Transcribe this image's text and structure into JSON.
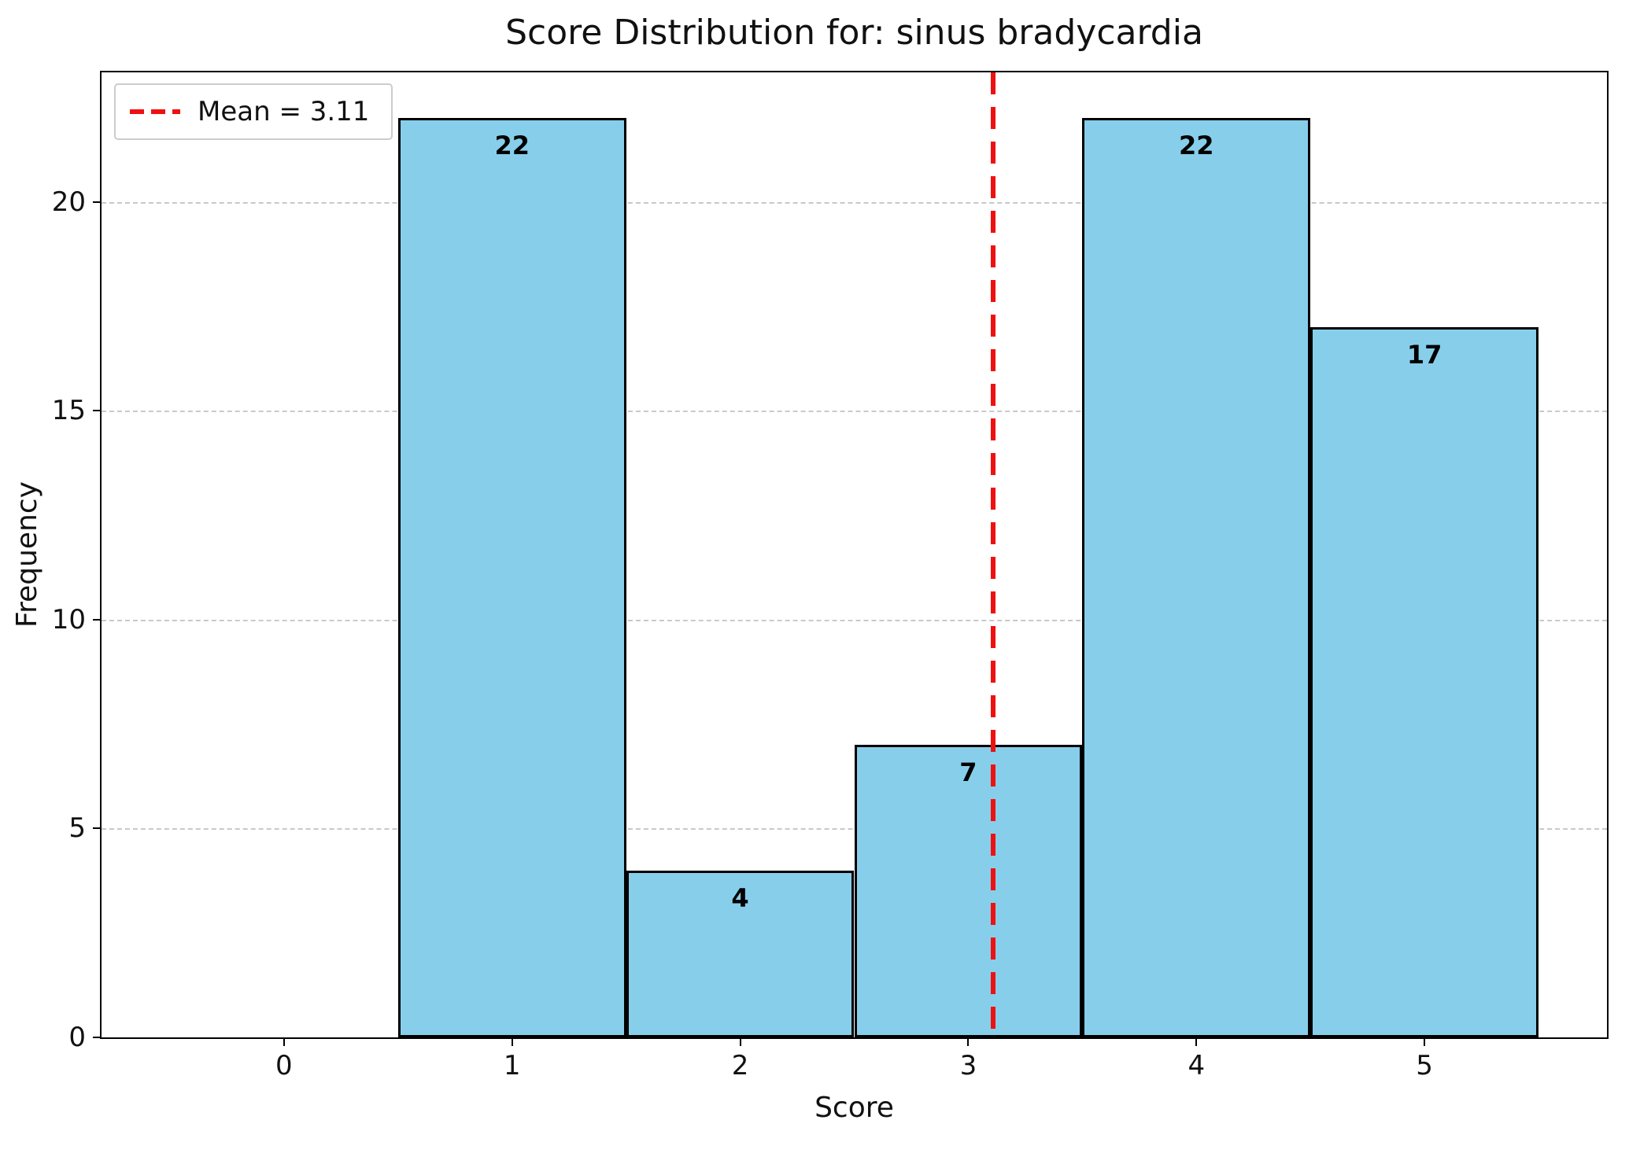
{
  "chart_data": {
    "type": "bar",
    "title": "Score Distribution for: sinus bradycardia",
    "xlabel": "Score",
    "ylabel": "Frequency",
    "categories": [
      0,
      1,
      2,
      3,
      4,
      5
    ],
    "values": [
      0,
      22,
      4,
      7,
      22,
      17
    ],
    "bar_width": 1.0,
    "mean": 3.11,
    "legend_label": "Mean = 3.11",
    "legend_position": "upper-left",
    "xlim": [
      -0.8,
      5.8
    ],
    "ylim": [
      0,
      23.1
    ],
    "xticks": [
      0,
      1,
      2,
      3,
      4,
      5
    ],
    "yticks": [
      0,
      5,
      10,
      15,
      20
    ],
    "grid": "horizontal-dashed",
    "colors": {
      "bar_fill": "#87ceeb",
      "bar_edge": "#000000",
      "mean_line": "#ee1111",
      "grid": "#c9c9c9",
      "text": "#111111",
      "background": "#ffffff"
    }
  }
}
